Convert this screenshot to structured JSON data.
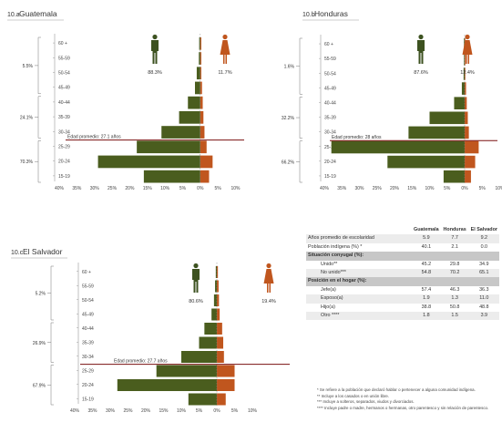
{
  "age_groups": [
    "60 +",
    "55-59",
    "50-54",
    "45-49",
    "40-44",
    "35-39",
    "30-34",
    "25-29",
    "20-24",
    "15-19"
  ],
  "x_ticks": [
    "40%",
    "35%",
    "30%",
    "25%",
    "20%",
    "15%",
    "10%",
    "5%",
    "0%",
    "5%",
    "10%"
  ],
  "colors": {
    "indigenous": "#4a5d1e",
    "non_indigenous": "#c0561e",
    "figure_male": "#3d5220",
    "figure_female": "#c0561e",
    "avg_line": "#7a1010",
    "axis": "#999999"
  },
  "icons": {
    "indigenous": "male-figure-icon",
    "non_indigenous": "female-figure-icon"
  },
  "chart_data": [
    {
      "type": "bar",
      "id": "guatemala",
      "title_num": "10.a",
      "title": "Guatemala",
      "categories": [
        "60 +",
        "55-59",
        "50-54",
        "45-49",
        "40-44",
        "35-39",
        "30-34",
        "25-29",
        "20-24",
        "15-19"
      ],
      "series": [
        {
          "values": [
            -0.3,
            -0.4,
            -1.0,
            -1.5,
            -3.5,
            -6.0,
            -11.0,
            -18.0,
            -29.0,
            -16.0
          ]
        },
        {
          "values": [
            0.3,
            0.3,
            0.3,
            0.5,
            0.7,
            0.9,
            1.2,
            1.8,
            3.5,
            2.5
          ]
        }
      ],
      "xlim": [
        -40,
        10
      ],
      "pct_indigenous": "88.3%",
      "pct_non_indigenous": "11.7%",
      "avg_age_label": "Edad promedio: 27.1 años",
      "avg_age_bucket": 2.6,
      "brackets": [
        {
          "label": "5.5%",
          "from": 0,
          "to": 3
        },
        {
          "label": "24.1%",
          "from": 4,
          "to": 6
        },
        {
          "label": "70.3%",
          "from": 7,
          "to": 9
        }
      ]
    },
    {
      "type": "bar",
      "id": "honduras",
      "title_num": "10.b",
      "title": "Honduras",
      "categories": [
        "60 +",
        "55-59",
        "50-54",
        "45-49",
        "40-44",
        "35-39",
        "30-34",
        "25-29",
        "20-24",
        "15-19"
      ],
      "series": [
        {
          "values": [
            -0.2,
            -0.2,
            -0.3,
            -0.8,
            -3.0,
            -10.0,
            -16.0,
            -38.0,
            -22.0,
            -6.0
          ]
        },
        {
          "values": [
            0.2,
            0.2,
            0.2,
            0.4,
            0.6,
            0.9,
            1.2,
            4.0,
            3.0,
            1.8
          ]
        }
      ],
      "xlim": [
        -40,
        10
      ],
      "pct_indigenous": "87.6%",
      "pct_non_indigenous": "12.4%",
      "avg_age_label": "Edad promedio: 28 años",
      "avg_age_bucket": 2.75,
      "brackets": [
        {
          "label": "1.6%",
          "from": 0,
          "to": 3
        },
        {
          "label": "32.2%",
          "from": 4,
          "to": 6
        },
        {
          "label": "66.2%",
          "from": 7,
          "to": 9
        }
      ]
    },
    {
      "type": "bar",
      "id": "elsalvador",
      "title_num": "10.c",
      "title": "El Salvador",
      "categories": [
        "60 +",
        "55-59",
        "50-54",
        "45-49",
        "40-44",
        "35-39",
        "30-34",
        "25-29",
        "20-24",
        "15-19"
      ],
      "series": [
        {
          "values": [
            -0.3,
            -0.5,
            -0.8,
            -1.5,
            -3.5,
            -5.0,
            -10.0,
            -17.0,
            -28.0,
            -8.0
          ]
        },
        {
          "values": [
            0.3,
            0.5,
            0.6,
            0.8,
            1.5,
            1.8,
            2.0,
            5.0,
            5.0,
            2.5
          ]
        }
      ],
      "xlim": [
        -40,
        10
      ],
      "pct_indigenous": "80.6%",
      "pct_non_indigenous": "19.4%",
      "avg_age_label": "Edad promedio: 27.7 años",
      "avg_age_bucket": 2.55,
      "brackets": [
        {
          "label": "5.2%",
          "from": 0,
          "to": 3
        },
        {
          "label": "26.9%",
          "from": 4,
          "to": 6
        },
        {
          "label": "67.9%",
          "from": 7,
          "to": 9
        }
      ]
    },
    {
      "type": "table",
      "columns": [
        "",
        "Guatemala",
        "Honduras",
        "El Salvador"
      ],
      "rows": [
        {
          "kind": "alt",
          "label": "Años promedio de escolaridad",
          "values": [
            "5.9",
            "7.7",
            "9.2"
          ]
        },
        {
          "kind": "plain",
          "label": "Población indígena (%) *",
          "values": [
            "40.1",
            "2.1",
            "0.0"
          ]
        },
        {
          "kind": "sect",
          "label": "Situación conyugal (%):",
          "values": [
            "",
            "",
            ""
          ]
        },
        {
          "kind": "sub",
          "label": "Unido**",
          "values": [
            "45.2",
            "29.8",
            "34.9"
          ]
        },
        {
          "kind": "subalt",
          "label": "No unido***",
          "values": [
            "54.8",
            "70.2",
            "65.1"
          ]
        },
        {
          "kind": "sect",
          "label": "Posición en el hogar (%):",
          "values": [
            "",
            "",
            ""
          ]
        },
        {
          "kind": "sub",
          "label": "Jefe(a)",
          "values": [
            "57.4",
            "46.3",
            "36.3"
          ]
        },
        {
          "kind": "subalt",
          "label": "Esposo(a)",
          "values": [
            "1.9",
            "1.3",
            "11.0"
          ]
        },
        {
          "kind": "sub",
          "label": "Hijo(a)",
          "values": [
            "38.8",
            "50.8",
            "48.8"
          ]
        },
        {
          "kind": "subalt",
          "label": "Otro ****",
          "values": [
            "1.8",
            "1.5",
            "3.9"
          ]
        }
      ]
    }
  ],
  "notes": [
    "* Se refiere a la población que declaró hablar o pertenecer a alguna comunidad indígena.",
    "** Incluye a los casados o en unión libre.",
    "*** Incluye a solteros, separados, viudos y divorciados.",
    "**** Incluye padre o madre, hermanos o hermanas, otro parentesco y sin relación de parentesco."
  ]
}
